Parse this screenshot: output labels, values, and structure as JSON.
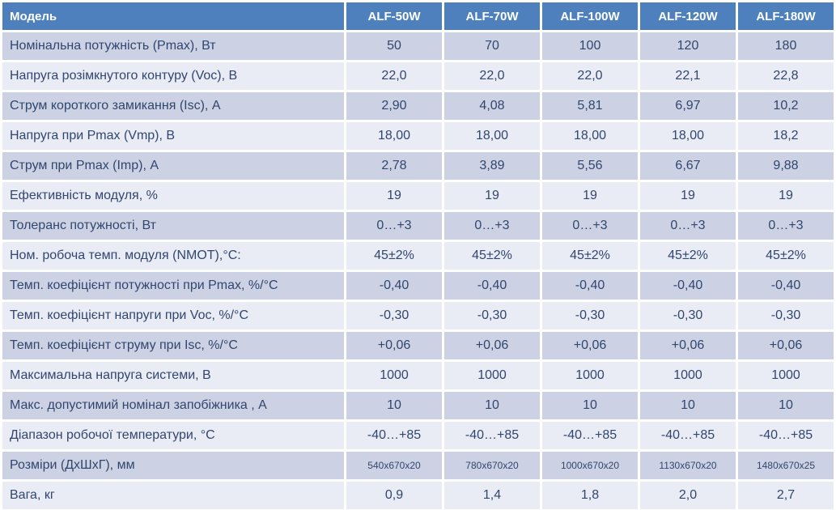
{
  "colors": {
    "header_bg": "#4d80bc",
    "header_text": "#ffffff",
    "row_dark_bg": "#ccd2e3",
    "row_light_bg": "#eaecf5",
    "text": "#31466f",
    "gap": "#ffffff"
  },
  "table": {
    "corner_label": "Модель",
    "models": [
      "ALF-50W",
      "ALF-70W",
      "ALF-100W",
      "ALF-120W",
      "ALF-180W"
    ],
    "rows": [
      {
        "label": "Номінальна потужність (Pmax), Вт",
        "values": [
          "50",
          "70",
          "100",
          "120",
          "180"
        ]
      },
      {
        "label": "Напруга розімкнутого контуру (Voc), В",
        "values": [
          "22,0",
          "22,0",
          "22,0",
          "22,1",
          "22,8"
        ]
      },
      {
        "label": "Струм короткого замикання (Isc), А",
        "values": [
          "2,90",
          "4,08",
          "5,81",
          "6,97",
          "10,2"
        ]
      },
      {
        "label": "Напруга при Pmax (Vmp), В",
        "values": [
          "18,00",
          "18,00",
          "18,00",
          "18,00",
          "18,2"
        ]
      },
      {
        "label": "Струм при Pmax (Imp), А",
        "values": [
          "2,78",
          "3,89",
          "5,56",
          "6,67",
          "9,88"
        ]
      },
      {
        "label": "Ефективність модуля, %",
        "values": [
          "19",
          "19",
          "19",
          "19",
          "19"
        ]
      },
      {
        "label": "Толеранс потужності, Вт",
        "values": [
          "0…+3",
          "0…+3",
          "0…+3",
          "0…+3",
          "0…+3"
        ]
      },
      {
        "label": "Ном. робоча темп. модуля (NMOT),°С:",
        "values": [
          "45±2%",
          "45±2%",
          "45±2%",
          "45±2%",
          "45±2%"
        ]
      },
      {
        "label": "Темп. коефіцієнт потужності при Pmax, %/°С",
        "values": [
          "-0,40",
          "-0,40",
          "-0,40",
          "-0,40",
          "-0,40"
        ]
      },
      {
        "label": "Темп. коефіцієнт напруги при Voc, %/°С",
        "values": [
          "-0,30",
          "-0,30",
          "-0,30",
          "-0,30",
          "-0,30"
        ]
      },
      {
        "label": "Темп. коефіцієнт струму при Isc, %/°С",
        "values": [
          "+0,06",
          "+0,06",
          "+0,06",
          "+0,06",
          "+0,06"
        ]
      },
      {
        "label": "Максимальна напруга системи, В",
        "values": [
          "1000",
          "1000",
          "1000",
          "1000",
          "1000"
        ]
      },
      {
        "label": "Макс. допустимий номінал запобіжника , А",
        "values": [
          "10",
          "10",
          "10",
          "10",
          "10"
        ]
      },
      {
        "label": "Діапазон робочої температури, °С",
        "values": [
          "-40…+85",
          "-40…+85",
          "-40…+85",
          "-40…+85",
          "-40…+85"
        ]
      },
      {
        "label": "Розміри (ДхШхГ), мм",
        "values": [
          "540x670x20",
          "780x670x20",
          "1000x670x20",
          "1130x670x20",
          "1480x670x25"
        ],
        "small_values": true
      },
      {
        "label": "Вага, кг",
        "values": [
          "0,9",
          "1,4",
          "1,8",
          "2,0",
          "2,7"
        ]
      }
    ]
  }
}
